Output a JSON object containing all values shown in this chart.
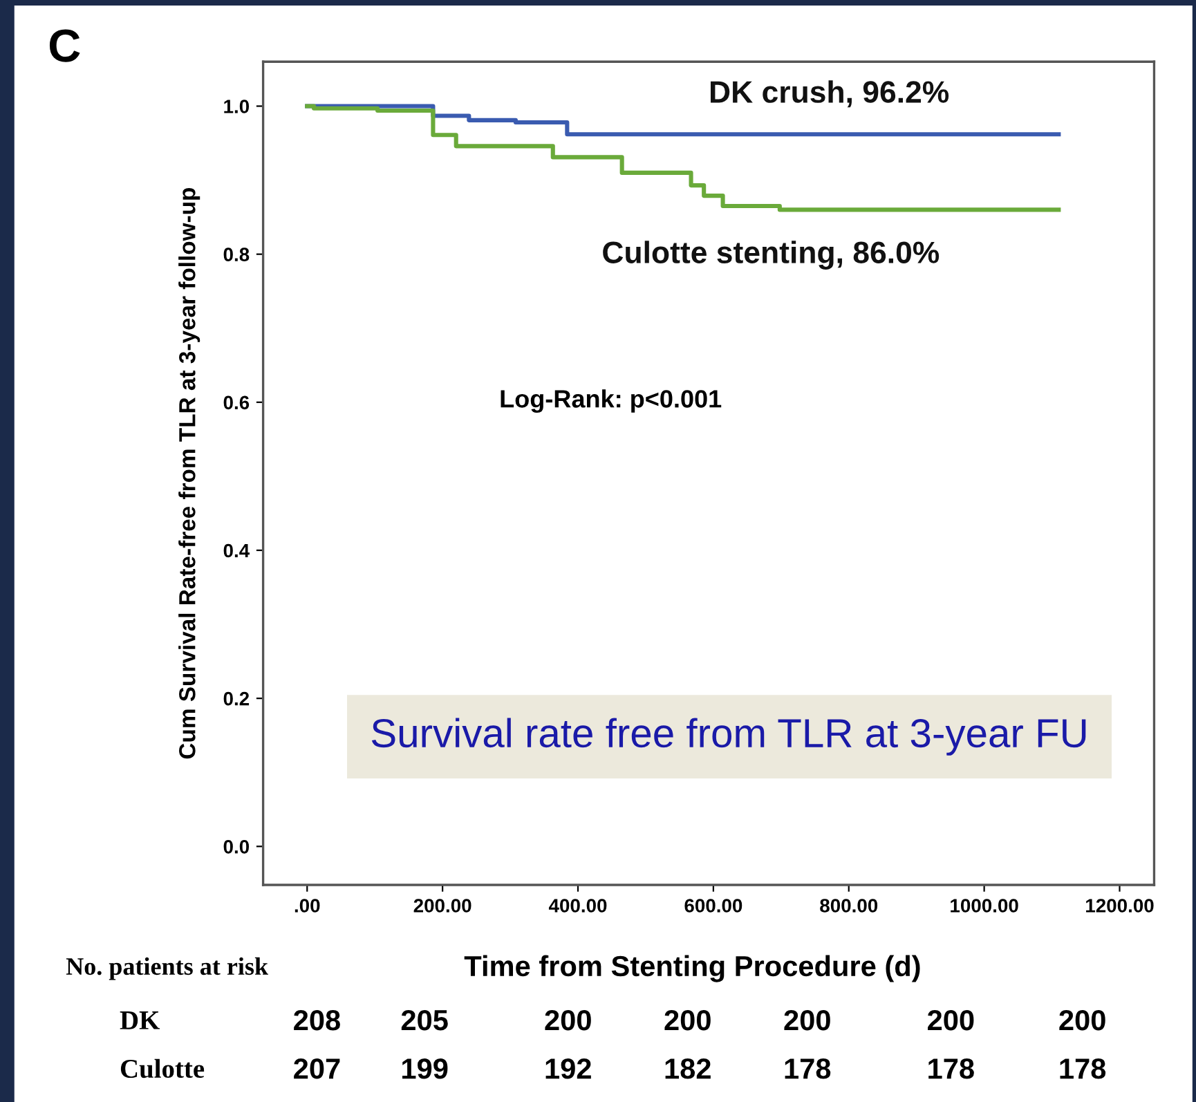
{
  "chart_data": {
    "type": "step",
    "title": "C",
    "ylabel": "Cum Survival Rate-free from TLR at 3-year follow-up",
    "xlabel": "Time from Stenting Procedure (d)",
    "series": [
      {
        "name": "DK crush, 96.2%",
        "color": "#3a5bb0",
        "x": [
          0,
          186,
          239,
          308,
          384,
          1110
        ],
        "values": [
          1.0,
          0.987,
          0.981,
          0.978,
          0.962,
          0.962
        ]
      },
      {
        "name": "Culotte stenting, 86.0%",
        "color": "#6aaa3a",
        "x": [
          0,
          10,
          104,
          186,
          220,
          363,
          465,
          567,
          586,
          614,
          698,
          1110
        ],
        "values": [
          1.0,
          0.997,
          0.994,
          0.961,
          0.946,
          0.931,
          0.91,
          0.893,
          0.879,
          0.865,
          0.86,
          0.86
        ]
      }
    ],
    "xlim": [
      -65,
      1251
    ],
    "ylim": [
      -0.052,
      1.06
    ],
    "xticks": [
      {
        "value": 0,
        "label": ".00"
      },
      {
        "value": 200,
        "label": "200.00"
      },
      {
        "value": 400,
        "label": "400.00"
      },
      {
        "value": 600,
        "label": "600.00"
      },
      {
        "value": 800,
        "label": "800.00"
      },
      {
        "value": 1000,
        "label": "1000.00"
      },
      {
        "value": 1200,
        "label": "1200.00"
      }
    ],
    "yticks": [
      {
        "value": 0,
        "label": "0.0"
      },
      {
        "value": 0.2,
        "label": "0.2"
      },
      {
        "value": 0.4,
        "label": "0.4"
      },
      {
        "value": 0.6,
        "label": "0.6"
      },
      {
        "value": 0.8,
        "label": "0.8"
      },
      {
        "value": 1.0,
        "label": "1.0"
      }
    ],
    "grid": false,
    "legend": false,
    "annotations": [
      "Log-Rank: p<0.001",
      "Survival rate free from TLR at 3-year FU",
      "No. patients at risk",
      "DK",
      "208",
      "205",
      "200",
      "200",
      "200",
      "200",
      "200",
      "Culotte",
      "207",
      "199",
      "192",
      "182",
      "178",
      "178",
      "178"
    ]
  }
}
